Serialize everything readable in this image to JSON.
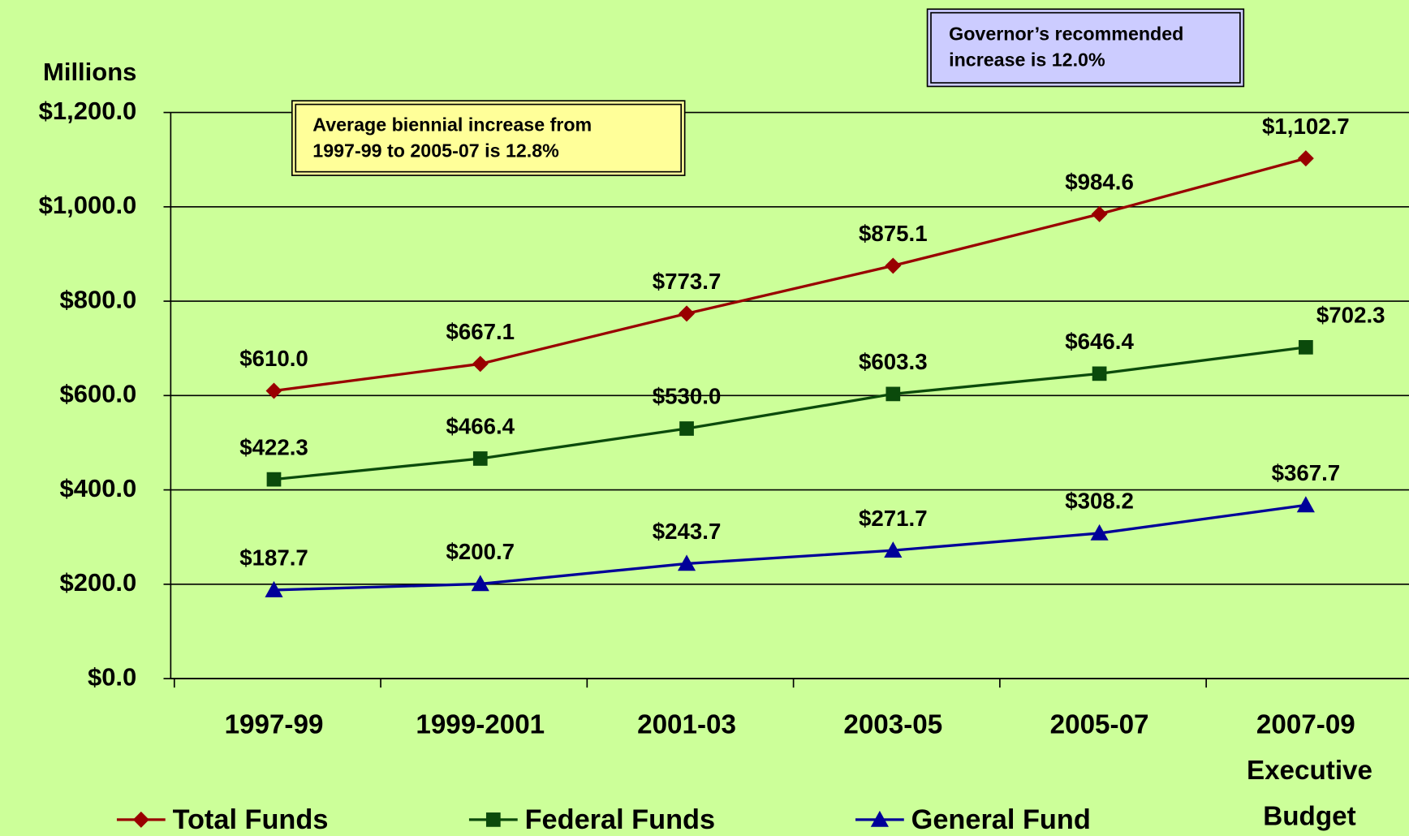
{
  "chart_data": {
    "type": "line",
    "y_label": "Millions",
    "categories": [
      "1997-99",
      "1999-2001",
      "2001-03",
      "2003-05",
      "2005-07",
      "2007-09 Executive Budget"
    ],
    "series": [
      {
        "name": "Total Funds",
        "color": "#990000",
        "marker": "diamond",
        "values": [
          610.0,
          667.1,
          773.7,
          875.1,
          984.6,
          1102.7
        ],
        "value_labels": [
          "$610.0",
          "$667.1",
          "$773.7",
          "$875.1",
          "$984.6",
          "$1,102.7"
        ]
      },
      {
        "name": "Federal Funds",
        "color": "#0b4a0b",
        "marker": "square",
        "values": [
          422.3,
          466.4,
          530.0,
          603.3,
          646.4,
          702.3
        ],
        "value_labels": [
          "$422.3",
          "$466.4",
          "$530.0",
          "$603.3",
          "$646.4",
          "$702.3"
        ]
      },
      {
        "name": "General Fund",
        "color": "#000099",
        "marker": "triangle",
        "values": [
          187.7,
          200.7,
          243.7,
          271.7,
          308.2,
          367.7
        ],
        "value_labels": [
          "$187.7",
          "$200.7",
          "$243.7",
          "$271.7",
          "$308.2",
          "$367.7"
        ]
      }
    ],
    "ylim": [
      0,
      1200
    ],
    "yticks": [
      {
        "value": 0,
        "label": "$0.0"
      },
      {
        "value": 200,
        "label": "$200.0"
      },
      {
        "value": 400,
        "label": "$400.0"
      },
      {
        "value": 600,
        "label": "$600.0"
      },
      {
        "value": 800,
        "label": "$800.0"
      },
      {
        "value": 1000,
        "label": "$1,000.0"
      },
      {
        "value": 1200,
        "label": "$1,200.0"
      }
    ],
    "grid": true,
    "legend": "bottom",
    "annotations": [
      {
        "lines": [
          "Average biennial increase from",
          "1997-99 to 2005-07 is 12.8%"
        ],
        "color": "#ffff99"
      },
      {
        "lines": [
          "Governor’s recommended",
          "increase is 12.0%"
        ],
        "color": "#ccccff"
      }
    ]
  }
}
